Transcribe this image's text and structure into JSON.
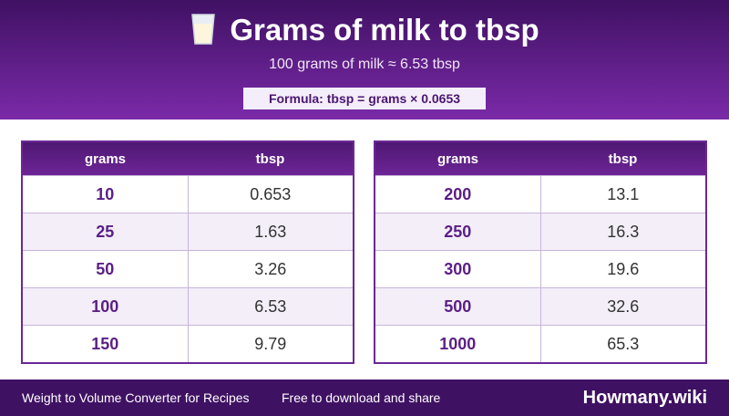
{
  "header": {
    "title": "Grams of milk to tbsp",
    "subtitle": "100 grams of milk ≈ 6.53 tbsp",
    "formula": "Formula: tbsp = grams × 0.0653"
  },
  "tables": [
    {
      "headers": [
        "grams",
        "tbsp"
      ],
      "rows": [
        [
          "10",
          "0.653"
        ],
        [
          "25",
          "1.63"
        ],
        [
          "50",
          "3.26"
        ],
        [
          "100",
          "6.53"
        ],
        [
          "150",
          "9.79"
        ]
      ]
    },
    {
      "headers": [
        "grams",
        "tbsp"
      ],
      "rows": [
        [
          "200",
          "13.1"
        ],
        [
          "250",
          "16.3"
        ],
        [
          "300",
          "19.6"
        ],
        [
          "500",
          "32.6"
        ],
        [
          "1000",
          "65.3"
        ]
      ]
    }
  ],
  "footer": {
    "left": "Weight to Volume Converter for Recipes",
    "middle": "Free to download and share",
    "brand": "Howmany.wiki"
  }
}
